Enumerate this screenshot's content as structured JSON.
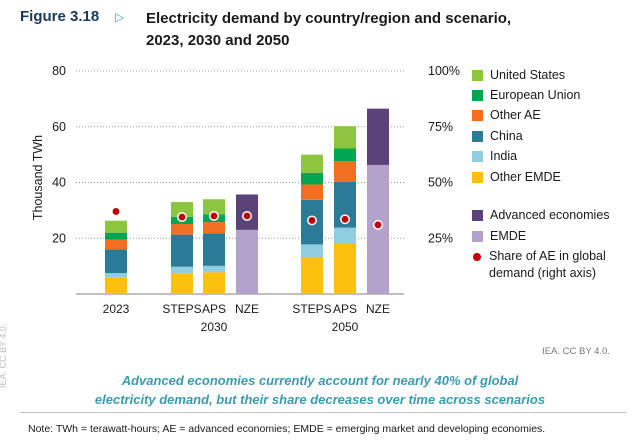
{
  "figure": {
    "label": "Figure 3.18",
    "title_line1": "Electricity demand by country/region and scenario,",
    "title_line2": "2023, 2030 and 2050"
  },
  "chart_data": {
    "type": "bar",
    "stacked": true,
    "ylabel": "Thousand TWh",
    "ylim": [
      0,
      80
    ],
    "yticks": [
      20,
      40,
      60,
      80
    ],
    "y2lim": [
      0,
      1
    ],
    "y2ticks": [
      "25%",
      "50%",
      "75%",
      "100%"
    ],
    "grid": "dotted horizontal",
    "legend_position": "right",
    "bars": [
      {
        "label": "2023",
        "group": "",
        "segments": {
          "other_emde": 6.0,
          "india": 1.5,
          "china": 8.5,
          "other_ae": 3.5,
          "eu": 2.5,
          "us": 4.3
        },
        "ae_share": 0.37
      },
      {
        "label": "STEPS",
        "group": "2030",
        "segments": {
          "other_emde": 7.5,
          "india": 2.3,
          "china": 11.5,
          "other_ae": 3.8,
          "eu": 2.6,
          "us": 5.3
        },
        "ae_share": 0.345
      },
      {
        "label": "APS",
        "group": "2030",
        "segments": {
          "other_emde": 7.8,
          "india": 2.3,
          "china": 11.7,
          "other_ae": 4.0,
          "eu": 2.8,
          "us": 5.4
        },
        "ae_share": 0.35
      },
      {
        "label": "NZE",
        "group": "2030",
        "segments": {
          "emde": 23.0,
          "advanced": 12.7
        },
        "ae_share": 0.35
      },
      {
        "label": "STEPS",
        "group": "2050",
        "segments": {
          "other_emde": 13.3,
          "india": 4.5,
          "china": 16.0,
          "other_ae": 5.5,
          "eu": 4.2,
          "us": 6.5
        },
        "ae_share": 0.33
      },
      {
        "label": "APS",
        "group": "2050",
        "segments": {
          "other_emde": 18.3,
          "india": 5.5,
          "china": 16.4,
          "other_ae": 7.5,
          "eu": 4.5,
          "us": 8.0
        },
        "ae_share": 0.335
      },
      {
        "label": "NZE",
        "group": "2050",
        "segments": {
          "emde": 46.3,
          "advanced": 20.2
        },
        "ae_share": 0.31
      }
    ],
    "groups": [
      "2030",
      "2050"
    ],
    "legend": {
      "us": "United States",
      "eu": "European Union",
      "other_ae": "Other AE",
      "china": "China",
      "india": "India",
      "other_emde": "Other EMDE",
      "advanced": "Advanced economies",
      "emde": "EMDE",
      "share": "Share of AE in global demand (right axis)"
    },
    "colors": {
      "us": "#8cc63f",
      "eu": "#00a651",
      "other_ae": "#f26f21",
      "china": "#2b7a96",
      "india": "#8fcde0",
      "other_emde": "#fcc10f",
      "advanced": "#5b4279",
      "emde": "#b3a2cc",
      "share": "#c00000"
    }
  },
  "credit": "IEA. CC BY 4.0.",
  "caption": {
    "line1": "Advanced economies currently account for nearly 40% of global",
    "line2": "electricity demand, but their share decreases over time across scenarios"
  },
  "note": "Note: TWh = terawatt-hours; AE = advanced economies; EMDE = emerging market and developing economies.",
  "side_mark": "IEA. CC BY 4.0."
}
